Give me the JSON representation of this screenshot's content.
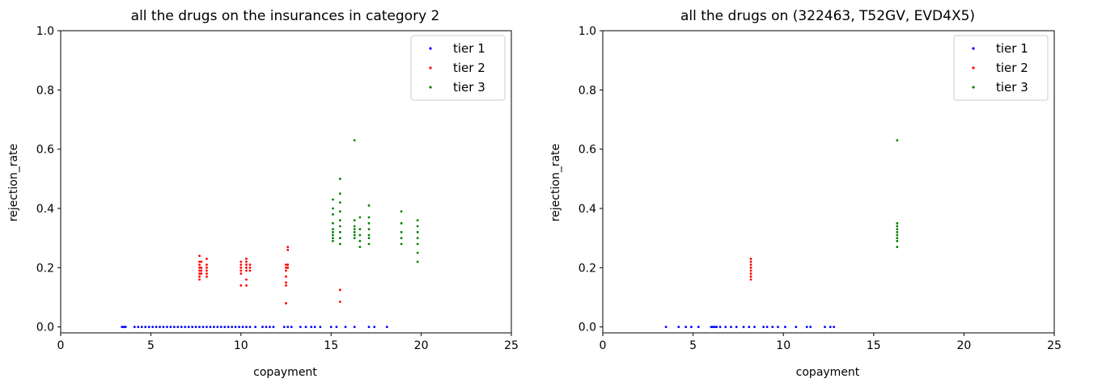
{
  "chart_data": [
    {
      "type": "scatter",
      "title": "all the drugs on the insurances in category 2",
      "xlabel": "copayment",
      "ylabel": "rejection_rate",
      "xlim": [
        0,
        25
      ],
      "ylim": [
        -0.02,
        1.0
      ],
      "xticks": [
        "0",
        "5",
        "10",
        "15",
        "20",
        "25"
      ],
      "yticks": [
        "0.0",
        "0.2",
        "0.4",
        "0.6",
        "0.8",
        "1.0"
      ],
      "legend_position": "top-right",
      "series": [
        {
          "name": "tier 1",
          "color": "#0000ff",
          "points": [
            [
              3.4,
              0
            ],
            [
              3.5,
              0
            ],
            [
              3.6,
              0
            ],
            [
              4.1,
              0
            ],
            [
              4.3,
              0
            ],
            [
              4.5,
              0
            ],
            [
              4.7,
              0
            ],
            [
              4.9,
              0
            ],
            [
              5.1,
              0
            ],
            [
              5.3,
              0
            ],
            [
              5.5,
              0
            ],
            [
              5.7,
              0
            ],
            [
              5.9,
              0
            ],
            [
              6.1,
              0
            ],
            [
              6.3,
              0
            ],
            [
              6.5,
              0
            ],
            [
              6.7,
              0
            ],
            [
              6.9,
              0
            ],
            [
              7.1,
              0
            ],
            [
              7.3,
              0
            ],
            [
              7.5,
              0
            ],
            [
              7.7,
              0
            ],
            [
              7.9,
              0
            ],
            [
              8.1,
              0
            ],
            [
              8.3,
              0
            ],
            [
              8.5,
              0
            ],
            [
              8.7,
              0
            ],
            [
              8.9,
              0
            ],
            [
              9.1,
              0
            ],
            [
              9.3,
              0
            ],
            [
              9.5,
              0
            ],
            [
              9.7,
              0
            ],
            [
              9.9,
              0
            ],
            [
              10.1,
              0
            ],
            [
              10.3,
              0
            ],
            [
              10.5,
              0
            ],
            [
              10.8,
              0
            ],
            [
              11.2,
              0
            ],
            [
              11.4,
              0
            ],
            [
              11.6,
              0
            ],
            [
              11.8,
              0
            ],
            [
              12.4,
              0
            ],
            [
              12.6,
              0
            ],
            [
              12.8,
              0
            ],
            [
              13.3,
              0
            ],
            [
              13.6,
              0
            ],
            [
              13.9,
              0
            ],
            [
              14.1,
              0
            ],
            [
              14.4,
              0
            ],
            [
              15.0,
              0
            ],
            [
              15.3,
              0
            ],
            [
              15.8,
              0
            ],
            [
              16.3,
              0
            ],
            [
              17.1,
              0
            ],
            [
              17.4,
              0
            ],
            [
              18.1,
              0
            ]
          ]
        },
        {
          "name": "tier 2",
          "color": "#ff0000",
          "points": [
            [
              7.7,
              0.24
            ],
            [
              7.7,
              0.22
            ],
            [
              7.7,
              0.21
            ],
            [
              7.7,
              0.2
            ],
            [
              7.7,
              0.19
            ],
            [
              7.7,
              0.18
            ],
            [
              7.7,
              0.17
            ],
            [
              7.7,
              0.16
            ],
            [
              7.8,
              0.22
            ],
            [
              7.8,
              0.2
            ],
            [
              7.8,
              0.19
            ],
            [
              7.8,
              0.18
            ],
            [
              8.1,
              0.23
            ],
            [
              8.1,
              0.21
            ],
            [
              8.1,
              0.2
            ],
            [
              8.1,
              0.19
            ],
            [
              8.1,
              0.18
            ],
            [
              8.1,
              0.17
            ],
            [
              10.0,
              0.22
            ],
            [
              10.0,
              0.21
            ],
            [
              10.0,
              0.2
            ],
            [
              10.0,
              0.19
            ],
            [
              10.0,
              0.18
            ],
            [
              10.0,
              0.14
            ],
            [
              10.3,
              0.23
            ],
            [
              10.3,
              0.22
            ],
            [
              10.3,
              0.21
            ],
            [
              10.3,
              0.2
            ],
            [
              10.3,
              0.19
            ],
            [
              10.3,
              0.16
            ],
            [
              10.3,
              0.14
            ],
            [
              10.5,
              0.21
            ],
            [
              10.5,
              0.2
            ],
            [
              10.5,
              0.19
            ],
            [
              12.5,
              0.21
            ],
            [
              12.5,
              0.2
            ],
            [
              12.5,
              0.19
            ],
            [
              12.5,
              0.17
            ],
            [
              12.5,
              0.15
            ],
            [
              12.5,
              0.14
            ],
            [
              12.5,
              0.08
            ],
            [
              12.6,
              0.27
            ],
            [
              12.6,
              0.26
            ],
            [
              12.6,
              0.21
            ],
            [
              12.6,
              0.2
            ],
            [
              15.5,
              0.125
            ],
            [
              15.5,
              0.085
            ]
          ]
        },
        {
          "name": "tier 3",
          "color": "#008000",
          "points": [
            [
              15.1,
              0.43
            ],
            [
              15.1,
              0.4
            ],
            [
              15.1,
              0.38
            ],
            [
              15.1,
              0.35
            ],
            [
              15.1,
              0.33
            ],
            [
              15.1,
              0.32
            ],
            [
              15.1,
              0.31
            ],
            [
              15.1,
              0.3
            ],
            [
              15.1,
              0.29
            ],
            [
              15.5,
              0.5
            ],
            [
              15.5,
              0.45
            ],
            [
              15.5,
              0.42
            ],
            [
              15.5,
              0.39
            ],
            [
              15.5,
              0.36
            ],
            [
              15.5,
              0.34
            ],
            [
              15.5,
              0.32
            ],
            [
              15.5,
              0.3
            ],
            [
              15.5,
              0.28
            ],
            [
              16.3,
              0.63
            ],
            [
              16.3,
              0.36
            ],
            [
              16.3,
              0.34
            ],
            [
              16.3,
              0.33
            ],
            [
              16.3,
              0.32
            ],
            [
              16.3,
              0.31
            ],
            [
              16.3,
              0.3
            ],
            [
              16.6,
              0.37
            ],
            [
              16.6,
              0.33
            ],
            [
              16.6,
              0.31
            ],
            [
              16.6,
              0.29
            ],
            [
              16.6,
              0.27
            ],
            [
              17.1,
              0.41
            ],
            [
              17.1,
              0.37
            ],
            [
              17.1,
              0.35
            ],
            [
              17.1,
              0.33
            ],
            [
              17.1,
              0.31
            ],
            [
              17.1,
              0.3
            ],
            [
              17.1,
              0.28
            ],
            [
              18.9,
              0.39
            ],
            [
              18.9,
              0.35
            ],
            [
              18.9,
              0.32
            ],
            [
              18.9,
              0.3
            ],
            [
              18.9,
              0.28
            ],
            [
              19.8,
              0.36
            ],
            [
              19.8,
              0.34
            ],
            [
              19.8,
              0.32
            ],
            [
              19.8,
              0.3
            ],
            [
              19.8,
              0.28
            ],
            [
              19.8,
              0.25
            ],
            [
              19.8,
              0.22
            ]
          ]
        }
      ]
    },
    {
      "type": "scatter",
      "title": "all the drugs on (322463, T52GV, EVD4X5)",
      "xlabel": "copayment",
      "ylabel": "rejection_rate",
      "xlim": [
        0,
        25
      ],
      "ylim": [
        -0.02,
        1.0
      ],
      "xticks": [
        "0",
        "5",
        "10",
        "15",
        "20",
        "25"
      ],
      "yticks": [
        "0.0",
        "0.2",
        "0.4",
        "0.6",
        "0.8",
        "1.0"
      ],
      "legend_position": "top-right",
      "series": [
        {
          "name": "tier 1",
          "color": "#0000ff",
          "points": [
            [
              3.5,
              0
            ],
            [
              4.2,
              0
            ],
            [
              4.6,
              0
            ],
            [
              4.9,
              0
            ],
            [
              5.3,
              0
            ],
            [
              6.0,
              0
            ],
            [
              6.1,
              0
            ],
            [
              6.2,
              0
            ],
            [
              6.3,
              0
            ],
            [
              6.5,
              0
            ],
            [
              6.8,
              0
            ],
            [
              7.1,
              0
            ],
            [
              7.4,
              0
            ],
            [
              7.8,
              0
            ],
            [
              8.1,
              0
            ],
            [
              8.4,
              0
            ],
            [
              8.9,
              0
            ],
            [
              9.1,
              0
            ],
            [
              9.4,
              0
            ],
            [
              9.7,
              0
            ],
            [
              10.1,
              0
            ],
            [
              10.7,
              0
            ],
            [
              11.3,
              0
            ],
            [
              11.5,
              0
            ],
            [
              12.3,
              0
            ],
            [
              12.6,
              0
            ],
            [
              12.8,
              0
            ]
          ]
        },
        {
          "name": "tier 2",
          "color": "#ff0000",
          "points": [
            [
              8.2,
              0.23
            ],
            [
              8.2,
              0.22
            ],
            [
              8.2,
              0.21
            ],
            [
              8.2,
              0.2
            ],
            [
              8.2,
              0.19
            ],
            [
              8.2,
              0.18
            ],
            [
              8.2,
              0.17
            ],
            [
              8.2,
              0.16
            ]
          ]
        },
        {
          "name": "tier 3",
          "color": "#008000",
          "points": [
            [
              16.3,
              0.63
            ],
            [
              16.3,
              0.35
            ],
            [
              16.3,
              0.34
            ],
            [
              16.3,
              0.33
            ],
            [
              16.3,
              0.32
            ],
            [
              16.3,
              0.31
            ],
            [
              16.3,
              0.3
            ],
            [
              16.3,
              0.29
            ],
            [
              16.3,
              0.27
            ]
          ]
        }
      ]
    }
  ]
}
